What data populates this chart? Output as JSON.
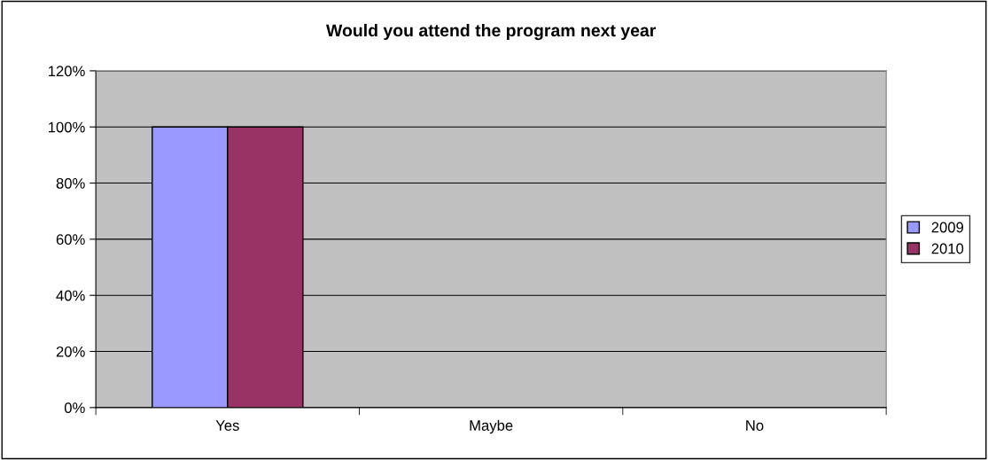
{
  "chart_data": {
    "type": "bar",
    "title": "Would you attend the program next year",
    "categories": [
      "Yes",
      "Maybe",
      "No"
    ],
    "series": [
      {
        "name": "2009",
        "color": "#9999ff",
        "values": [
          100,
          0,
          0
        ]
      },
      {
        "name": "2010",
        "color": "#993366",
        "values": [
          100,
          0,
          0
        ]
      }
    ],
    "ylim": [
      0,
      120
    ],
    "yticks": [
      {
        "value": 0,
        "label": "0%"
      },
      {
        "value": 20,
        "label": "20%"
      },
      {
        "value": 40,
        "label": "40%"
      },
      {
        "value": 60,
        "label": "60%"
      },
      {
        "value": 80,
        "label": "80%"
      },
      {
        "value": 100,
        "label": "100%"
      },
      {
        "value": 120,
        "label": "120%"
      }
    ],
    "grid": "y",
    "legend": "right"
  }
}
